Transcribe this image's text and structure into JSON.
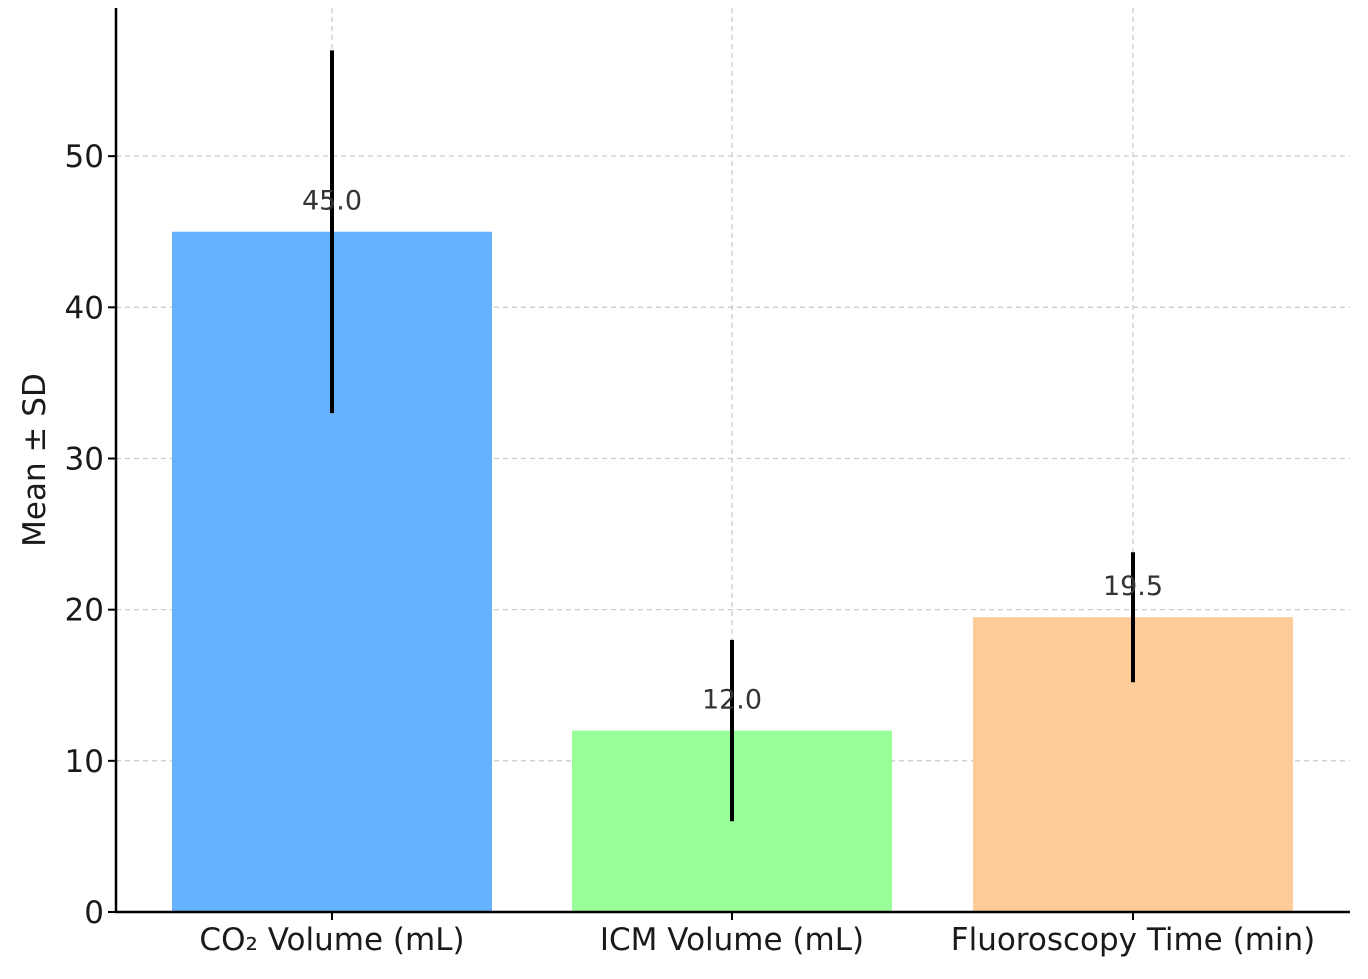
{
  "chart_data": {
    "type": "bar",
    "categories": [
      "CO₂ Volume (mL)",
      "ICM Volume (mL)",
      "Fluoroscopy Time (min)"
    ],
    "values": [
      45.0,
      12.0,
      19.5
    ],
    "errors": [
      12.0,
      6.0,
      4.3
    ],
    "value_labels": [
      "45.0",
      "12.0",
      "19.5"
    ],
    "colors": [
      "#66b2ff",
      "#99ff99",
      "#ffcc99"
    ],
    "ylabel": "Mean ± SD",
    "xlabel": "",
    "title": "",
    "ylim": [
      0,
      59.8
    ],
    "yticks": [
      0,
      10,
      20,
      30,
      40,
      50
    ],
    "grid": true
  }
}
